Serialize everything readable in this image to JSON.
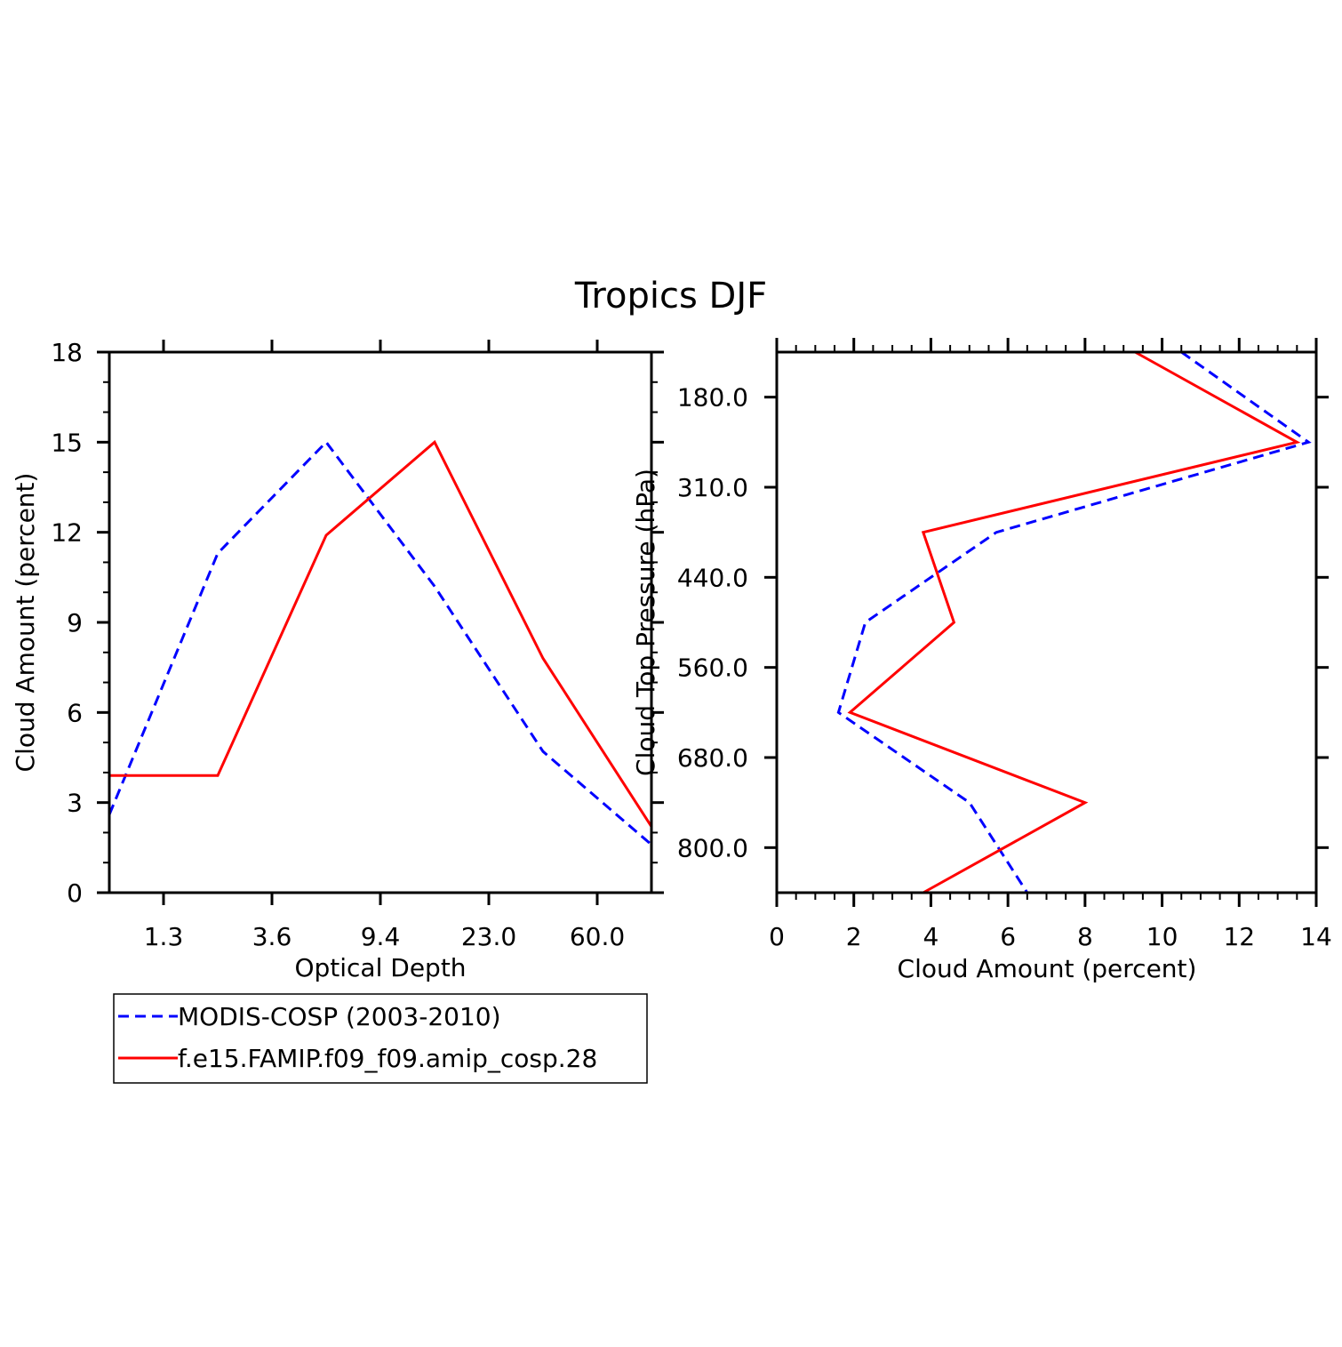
{
  "title": "Tropics DJF",
  "colors": {
    "obs": "#0000ff",
    "model": "#ff0000",
    "axis": "#000000"
  },
  "legend": {
    "entries": [
      {
        "label": "MODIS-COSP (2003-2010)",
        "style": "dashed",
        "color": "#0000ff"
      },
      {
        "label": "f.e15.FAMIP.f09_f09.amip_cosp.28",
        "style": "solid",
        "color": "#ff0000"
      }
    ]
  },
  "chart_data": [
    {
      "type": "line",
      "title": "",
      "xlabel": "Optical Depth",
      "ylabel": "Cloud Amount (percent)",
      "x_ticklabels": [
        "1.3",
        "3.6",
        "9.4",
        "23.0",
        "60.0"
      ],
      "x_tick_positions": [
        1,
        3,
        5,
        7,
        9
      ],
      "xlim": [
        0,
        10
      ],
      "ylim": [
        0,
        18
      ],
      "y_ticks": [
        0,
        3,
        6,
        9,
        12,
        15,
        18
      ],
      "series": [
        {
          "name": "MODIS-COSP (2003-2010)",
          "x": [
            0,
            2,
            4,
            6,
            8,
            10
          ],
          "values": [
            2.6,
            11.3,
            15.0,
            10.2,
            4.7,
            1.6
          ]
        },
        {
          "name": "f.e15.FAMIP.f09_f09.amip_cosp.28",
          "x": [
            0,
            2,
            4,
            6,
            8,
            10
          ],
          "values": [
            3.9,
            3.9,
            11.9,
            15.0,
            7.8,
            2.2
          ]
        }
      ]
    },
    {
      "type": "line",
      "title": "",
      "xlabel": "Cloud Amount (percent)",
      "ylabel": "Cloud Top Pressure (hPa)",
      "x_ticks": [
        0,
        2,
        4,
        6,
        8,
        10,
        12,
        14
      ],
      "xlim": [
        0,
        14
      ],
      "y_ticklabels": [
        "180.0",
        "310.0",
        "440.0",
        "560.0",
        "680.0",
        "800.0"
      ],
      "y_tick_positions": [
        1,
        3,
        5,
        7,
        9,
        11
      ],
      "ylim": [
        0,
        12
      ],
      "series": [
        {
          "name": "MODIS-COSP (2003-2010)",
          "level": [
            0,
            2,
            4,
            6,
            8,
            10,
            12
          ],
          "values": [
            10.5,
            13.8,
            5.7,
            2.3,
            1.6,
            5.0,
            6.5
          ]
        },
        {
          "name": "f.e15.FAMIP.f09_f09.amip_cosp.28",
          "level": [
            0,
            2,
            4,
            6,
            8,
            10,
            12
          ],
          "values": [
            9.3,
            13.5,
            3.8,
            4.6,
            1.9,
            8.0,
            3.8
          ]
        }
      ]
    }
  ]
}
